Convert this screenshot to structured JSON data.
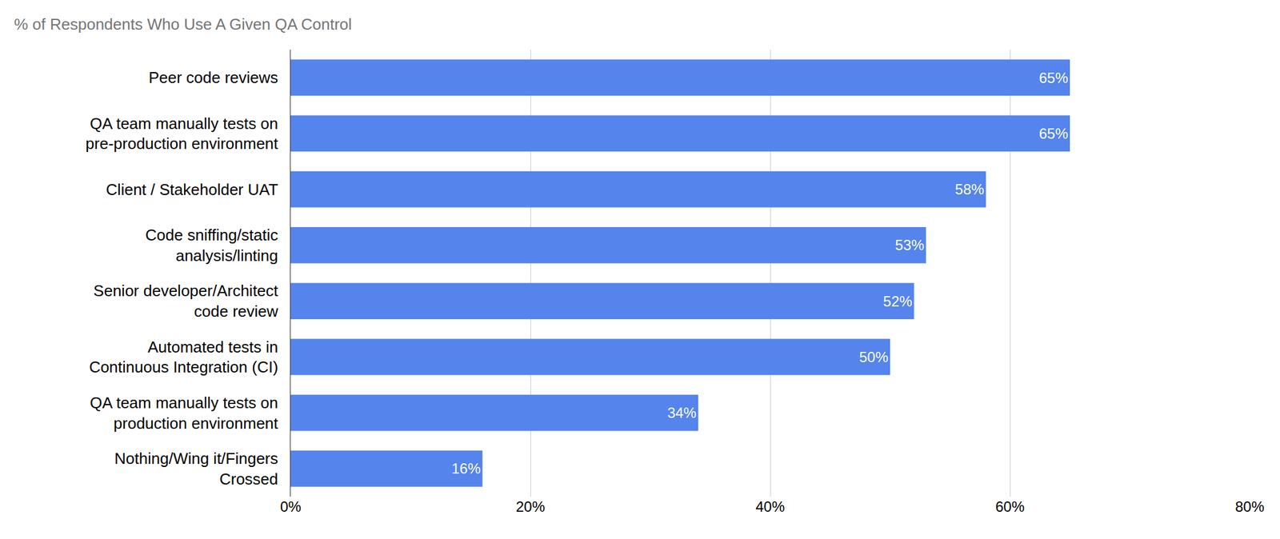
{
  "chart_data": {
    "type": "bar",
    "title": "% of Respondents Who Use A Given QA Control",
    "orientation": "horizontal",
    "categories": [
      "Peer code reviews",
      "QA team manually tests on pre-production environment",
      "Client / Stakeholder UAT",
      "Code sniffing/static analysis/linting",
      "Senior developer/Architect code review",
      "Automated tests in Continuous Integration (CI)",
      "QA team manually tests on production environment",
      "Nothing/Wing it/Fingers Crossed"
    ],
    "values": [
      65,
      65,
      58,
      53,
      52,
      50,
      34,
      16
    ],
    "value_labels": [
      "65%",
      "65%",
      "58%",
      "53%",
      "52%",
      "50%",
      "34%",
      "16%"
    ],
    "data_labels": true,
    "color": "#5484ec",
    "xlim": [
      0,
      80
    ],
    "xticks": [
      {
        "value": 0,
        "label": "0%"
      },
      {
        "value": 20,
        "label": "20%"
      },
      {
        "value": 40,
        "label": "40%"
      },
      {
        "value": 60,
        "label": "60%"
      },
      {
        "value": 80,
        "label": "80%"
      }
    ],
    "grid": true
  }
}
